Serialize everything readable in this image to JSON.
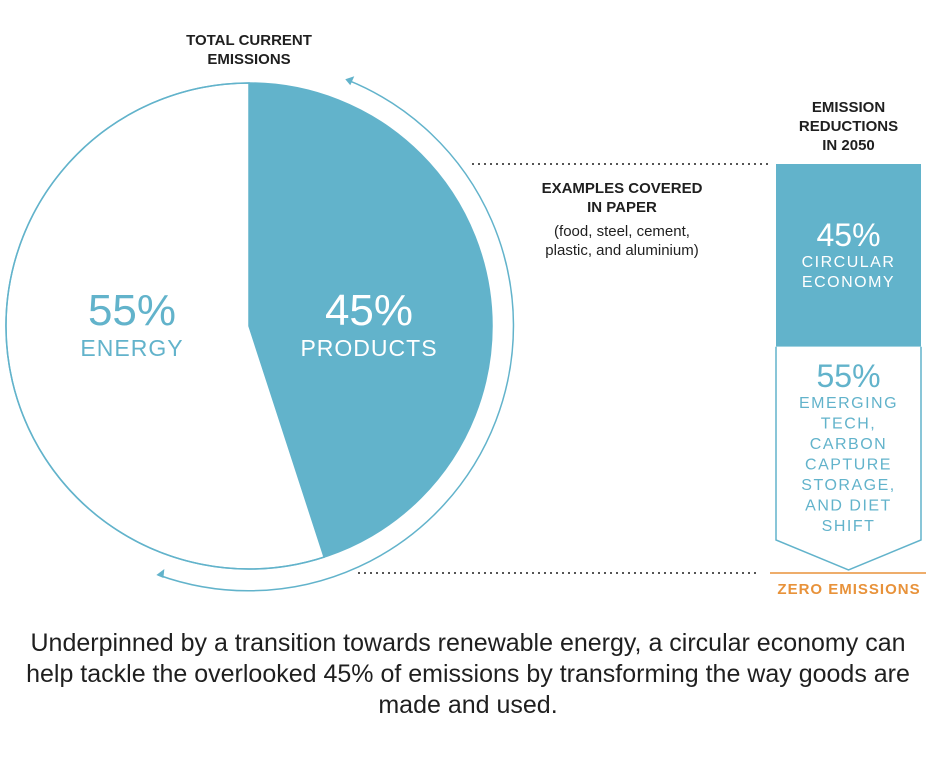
{
  "chart_data": [
    {
      "type": "pie",
      "title": [
        "TOTAL CURRENT",
        "EMISSIONS"
      ],
      "slices": [
        {
          "name": "PRODUCTS",
          "value": 45,
          "label": "45%",
          "filled": true
        },
        {
          "name": "ENERGY",
          "value": 55,
          "label": "55%",
          "filled": false
        }
      ],
      "annotation": {
        "lines": [
          "EXAMPLES COVERED",
          "IN PAPER"
        ],
        "detail": [
          "(food, steel, cement,",
          "plastic, and aluminium)"
        ]
      }
    },
    {
      "type": "bar",
      "stacked": true,
      "title": [
        "EMISSION",
        "REDUCTIONS",
        "IN 2050"
      ],
      "segments": [
        {
          "value": 45,
          "label": "45%",
          "text": [
            "CIRCULAR",
            "ECONOMY"
          ],
          "filled": true
        },
        {
          "value": 55,
          "label": "55%",
          "text": [
            "EMERGING",
            "TECH,",
            "CARBON",
            "CAPTURE",
            "STORAGE,",
            "AND DIET",
            "SHIFT"
          ],
          "filled": false
        }
      ],
      "end_label": "ZERO EMISSIONS"
    }
  ],
  "caption": "Underpinned by a transition towards renewable energy, a circular economy can help tackle the overlooked 45% of emissions by transforming the way goods are made and used.",
  "colors": {
    "accent": "#62b3cb",
    "orange": "#e8923a",
    "text": "#1f1f1f",
    "dots": "#555555"
  }
}
